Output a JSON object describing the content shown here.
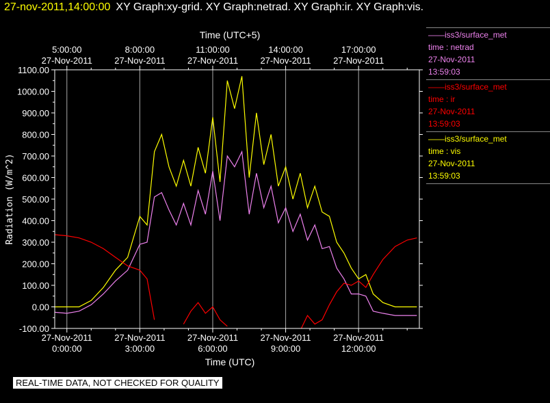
{
  "header": {
    "timestamp": "27-nov-2011,14:00:00",
    "graphs": "XY Graph:xy-grid.  XY Graph:netrad.  XY Graph:ir.  XY Graph:vis."
  },
  "legend": [
    {
      "station": "——iss3/surface_met",
      "var": "time : netrad",
      "date": "27-Nov-2011",
      "time": "13:59:03",
      "color": "#ee82ee"
    },
    {
      "station": "——iss3/surface_met",
      "var": "time : ir",
      "date": "27-Nov-2011",
      "time": "13:59:03",
      "color": "#ff0000"
    },
    {
      "station": "——iss3/surface_met",
      "var": "time : vis",
      "date": "27-Nov-2011",
      "time": "13:59:03",
      "color": "#ffff00"
    }
  ],
  "disclaimer": "REAL-TIME DATA, NOT CHECKED FOR QUALITY",
  "chart_data": {
    "type": "line",
    "xlabel": "Time (UTC)",
    "x2label": "Time (UTC+5)",
    "ylabel": "Radiation (W/m^2)",
    "xlim": [
      -0.5,
      14.5
    ],
    "ylim": [
      -100,
      1100
    ],
    "grid": "vertical lines at major ticks",
    "x_ticks": [
      0,
      3,
      6,
      9,
      12
    ],
    "x_tick_labels_bottom": [
      [
        "27-Nov-2011",
        "0:00:00"
      ],
      [
        "27-Nov-2011",
        "3:00:00"
      ],
      [
        "27-Nov-2011",
        "6:00:00"
      ],
      [
        "27-Nov-2011",
        "9:00:00"
      ],
      [
        "27-Nov-2011",
        "12:00:00"
      ]
    ],
    "x_tick_labels_top": [
      [
        "5:00:00",
        "27-Nov-2011"
      ],
      [
        "8:00:00",
        "27-Nov-2011"
      ],
      [
        "11:00:00",
        "27-Nov-2011"
      ],
      [
        "14:00:00",
        "27-Nov-2011"
      ],
      [
        "17:00:00",
        "27-Nov-2011"
      ]
    ],
    "y_ticks": [
      -100,
      0,
      100,
      200,
      300,
      400,
      500,
      600,
      700,
      800,
      900,
      1000,
      1100
    ],
    "y_tick_labels": [
      "-100.00",
      "0.00",
      "100.00",
      "200.00",
      "300.00",
      "400.00",
      "500.00",
      "600.00",
      "700.00",
      "800.00",
      "900.00",
      "1000.00",
      "1100.00"
    ],
    "x": [
      -0.5,
      0,
      0.5,
      1,
      1.5,
      2,
      2.5,
      3,
      3.3,
      3.6,
      3.9,
      4.2,
      4.5,
      4.8,
      5.1,
      5.4,
      5.7,
      6,
      6.3,
      6.6,
      6.9,
      7.2,
      7.5,
      7.8,
      8.1,
      8.4,
      8.7,
      9,
      9.3,
      9.6,
      9.9,
      10.2,
      10.5,
      10.8,
      11.1,
      11.4,
      11.7,
      12,
      12.3,
      12.6,
      13,
      13.5,
      14,
      14.4
    ],
    "series": [
      {
        "name": "vis",
        "color": "#ffff00",
        "values": [
          0,
          0,
          0,
          30,
          90,
          170,
          230,
          420,
          380,
          720,
          800,
          650,
          560,
          680,
          560,
          740,
          620,
          880,
          580,
          1050,
          920,
          1070,
          600,
          900,
          660,
          800,
          560,
          650,
          500,
          620,
          460,
          560,
          440,
          420,
          300,
          250,
          180,
          130,
          150,
          60,
          20,
          0,
          0,
          0
        ]
      },
      {
        "name": "netrad",
        "color": "#ee82ee",
        "values": [
          -25,
          -30,
          -20,
          10,
          60,
          120,
          170,
          290,
          300,
          510,
          530,
          450,
          380,
          480,
          380,
          540,
          430,
          630,
          400,
          700,
          650,
          720,
          430,
          620,
          460,
          560,
          390,
          460,
          350,
          430,
          310,
          380,
          270,
          280,
          180,
          130,
          60,
          60,
          50,
          -20,
          -30,
          -40,
          -40,
          -40
        ]
      },
      {
        "name": "ir",
        "color": "#ff0000",
        "values": [
          335,
          330,
          320,
          300,
          270,
          230,
          190,
          170,
          130,
          -60,
          null,
          null,
          null,
          -80,
          -20,
          20,
          -30,
          0,
          -60,
          -90,
          null,
          null,
          null,
          null,
          null,
          null,
          null,
          null,
          null,
          -110,
          -40,
          -80,
          -60,
          10,
          70,
          110,
          100,
          120,
          90,
          150,
          220,
          280,
          310,
          320
        ]
      }
    ]
  }
}
